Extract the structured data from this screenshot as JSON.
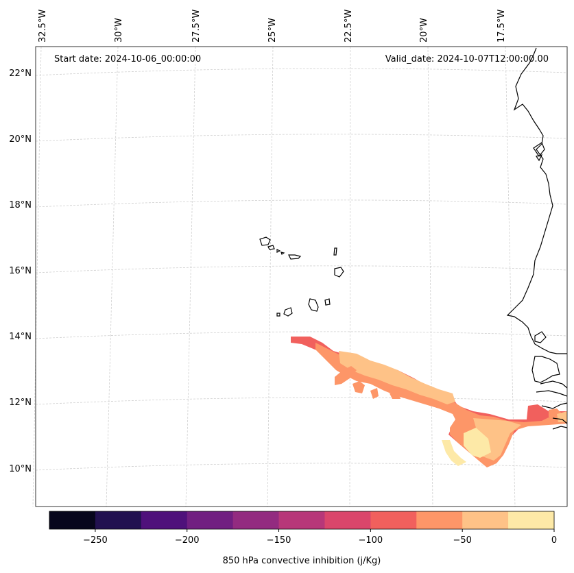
{
  "map": {
    "start_date": "Start date: 2024-10-06_00:00:00",
    "valid_date": "Valid_date: 2024-10-07T12:00:00.00",
    "lon_labels": [
      "32.5°W",
      "30°W",
      "27.5°W",
      "25°W",
      "22.5°W",
      "20°W",
      "17.5°W"
    ],
    "lat_labels": [
      "22°N",
      "20°N",
      "18°N",
      "16°N",
      "14°N",
      "12°N",
      "10°N"
    ],
    "gridlines": true
  },
  "colorbar": {
    "label": "850 hPa convective inhibition (j/Kg)",
    "ticks": [
      "−250",
      "−200",
      "−150",
      "−100",
      "−50",
      "0"
    ],
    "tick_values": [
      -250,
      -200,
      -150,
      -100,
      -50,
      0
    ],
    "range": [
      -275,
      0
    ],
    "levels": [
      -275,
      -250,
      -225,
      -200,
      -175,
      -150,
      -125,
      -100,
      -75,
      -50,
      -25,
      0
    ],
    "colors": [
      "#07061c",
      "#221150",
      "#4f117b",
      "#711f81",
      "#932b80",
      "#b73779",
      "#da466b",
      "#f1605d",
      "#fd9668",
      "#fec287",
      "#fde9a7"
    ]
  },
  "field": {
    "variable": "850 hPa convective inhibition",
    "units": "j/Kg",
    "band_values_present": [
      -87,
      -62,
      -37,
      -12
    ]
  }
}
